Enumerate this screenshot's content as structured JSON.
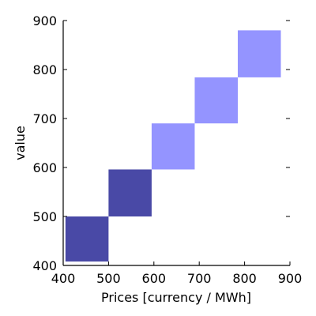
{
  "chart_data": {
    "type": "bar",
    "xlabel": "Prices [currency / MWh]",
    "ylabel": "value",
    "xlim": [
      400,
      900
    ],
    "ylim": [
      400,
      900
    ],
    "grid": false,
    "x_ticks": [
      "400",
      "500",
      "600",
      "700",
      "800",
      "900"
    ],
    "y_ticks": [
      "400",
      "500",
      "600",
      "700",
      "800",
      "900"
    ],
    "bars": [
      {
        "x_start": 405,
        "x_end": 500,
        "y_start": 408,
        "y_end": 500,
        "color": "#4949a6"
      },
      {
        "x_start": 500,
        "x_end": 595,
        "y_start": 500,
        "y_end": 596,
        "color": "#4949a6"
      },
      {
        "x_start": 595,
        "x_end": 690,
        "y_start": 596,
        "y_end": 690,
        "color": "#9494ff"
      },
      {
        "x_start": 690,
        "x_end": 785,
        "y_start": 690,
        "y_end": 784,
        "color": "#9494ff"
      },
      {
        "x_start": 785,
        "x_end": 880,
        "y_start": 784,
        "y_end": 880,
        "color": "#9494ff"
      }
    ]
  }
}
